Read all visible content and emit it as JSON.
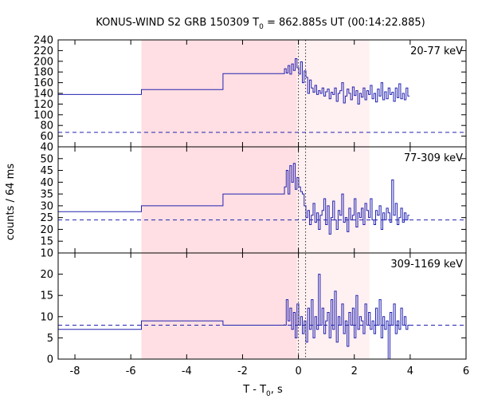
{
  "chart_data": {
    "type": "line",
    "title_main": "KONUS-WIND S2 GRB 150309 T",
    "title_sub": "0",
    "title_rest": " = 862.885s UT (00:14:22.885)",
    "ylabel": "counts / 64 ms",
    "xlabel_main": "T - T",
    "xlabel_sub": "0",
    "xlabel_rest": ", s",
    "xlim": [
      -8.6,
      6.0
    ],
    "x_ticks": [
      -8,
      -6,
      -4,
      -2,
      0,
      2,
      4,
      6
    ],
    "x_tick_labels": [
      "-8",
      "-6",
      "-4",
      "-2",
      "0",
      "2",
      "4",
      "6"
    ],
    "shaded_regions": [
      {
        "x0": -5.62,
        "x1": -0.06,
        "color": "#ffdfe3"
      },
      {
        "x0": -0.06,
        "x1": 2.54,
        "color": "#fff0f1"
      }
    ],
    "vlines": [
      0.0,
      0.256
    ],
    "line_color": "#2323b0",
    "panels": [
      {
        "label": "20-77 keV",
        "ylim": [
          40,
          240
        ],
        "y_ticks": [
          40,
          60,
          80,
          100,
          120,
          140,
          160,
          180,
          200,
          220,
          240
        ],
        "y_tick_labels": [
          "40",
          "60",
          "80",
          "100",
          "120",
          "140",
          "160",
          "180",
          "200",
          "220",
          "240"
        ],
        "background": 67,
        "steps": [
          [
            -8.6,
            138
          ],
          [
            -5.62,
            147
          ],
          [
            -2.7,
            177
          ],
          [
            -0.5,
            186
          ]
        ],
        "fine_start": -0.5,
        "fine_values": [
          186,
          178,
          192,
          176,
          195,
          183,
          205,
          188,
          176,
          199,
          160,
          182,
          170,
          140,
          165,
          150,
          142,
          155,
          138,
          145,
          140,
          150,
          135,
          143,
          148,
          130,
          142,
          138,
          150,
          125,
          140,
          145,
          160,
          122,
          135,
          148,
          140,
          128,
          152,
          136,
          145,
          120,
          140,
          133,
          150,
          128,
          145,
          138,
          155,
          130,
          140,
          124,
          148,
          135,
          160,
          128,
          143,
          130,
          150,
          138,
          142,
          125,
          150,
          132,
          158,
          130,
          140,
          128,
          150,
          135
        ]
      },
      {
        "label": "77-309 keV",
        "ylim": [
          10,
          55
        ],
        "y_ticks": [
          10,
          15,
          20,
          25,
          30,
          35,
          40,
          45,
          50
        ],
        "y_tick_labels": [
          "10",
          "15",
          "20",
          "25",
          "30",
          "35",
          "40",
          "45",
          "50"
        ],
        "background": 24,
        "steps": [
          [
            -8.6,
            27.5
          ],
          [
            -5.62,
            30
          ],
          [
            -2.7,
            35
          ],
          [
            -0.5,
            38
          ]
        ],
        "fine_start": -0.5,
        "fine_values": [
          38,
          45,
          35,
          47,
          40,
          48,
          37,
          42,
          38,
          36,
          35,
          30,
          25,
          28,
          22,
          26,
          31,
          23,
          27,
          20,
          26,
          28,
          33,
          22,
          30,
          18,
          25,
          32,
          24,
          20,
          28,
          26,
          35,
          23,
          25,
          19,
          29,
          24,
          26,
          33,
          21,
          27,
          25,
          29,
          22,
          31,
          28,
          25,
          33,
          24,
          22,
          28,
          26,
          30,
          20,
          27,
          24,
          29,
          27,
          23,
          41,
          26,
          31,
          22,
          25,
          29,
          23,
          27,
          24,
          26
        ]
      },
      {
        "label": "309-1169 keV",
        "ylim": [
          0,
          25
        ],
        "y_ticks": [
          0,
          5,
          10,
          15,
          20
        ],
        "y_tick_labels": [
          "0",
          "5",
          "10",
          "15",
          "20"
        ],
        "background": 8,
        "steps": [
          [
            -8.6,
            7
          ],
          [
            -5.62,
            9
          ],
          [
            -2.7,
            8
          ],
          [
            -0.5,
            8.2
          ]
        ],
        "fine_start": -0.5,
        "fine_values": [
          8,
          14,
          9,
          12,
          7,
          11,
          5,
          13,
          8,
          10,
          6,
          9,
          4,
          12,
          7,
          14,
          5,
          10,
          7,
          20,
          8,
          12,
          6,
          9,
          11,
          5,
          14,
          7,
          16,
          4,
          10,
          8,
          13,
          6,
          9,
          3,
          11,
          8,
          12,
          5,
          15,
          7,
          10,
          9,
          6,
          13,
          8,
          11,
          7,
          9,
          6,
          12,
          8,
          14,
          5,
          10,
          7,
          9,
          0,
          11,
          8,
          13,
          6,
          9,
          7,
          12,
          8,
          10,
          7,
          8
        ]
      }
    ]
  }
}
